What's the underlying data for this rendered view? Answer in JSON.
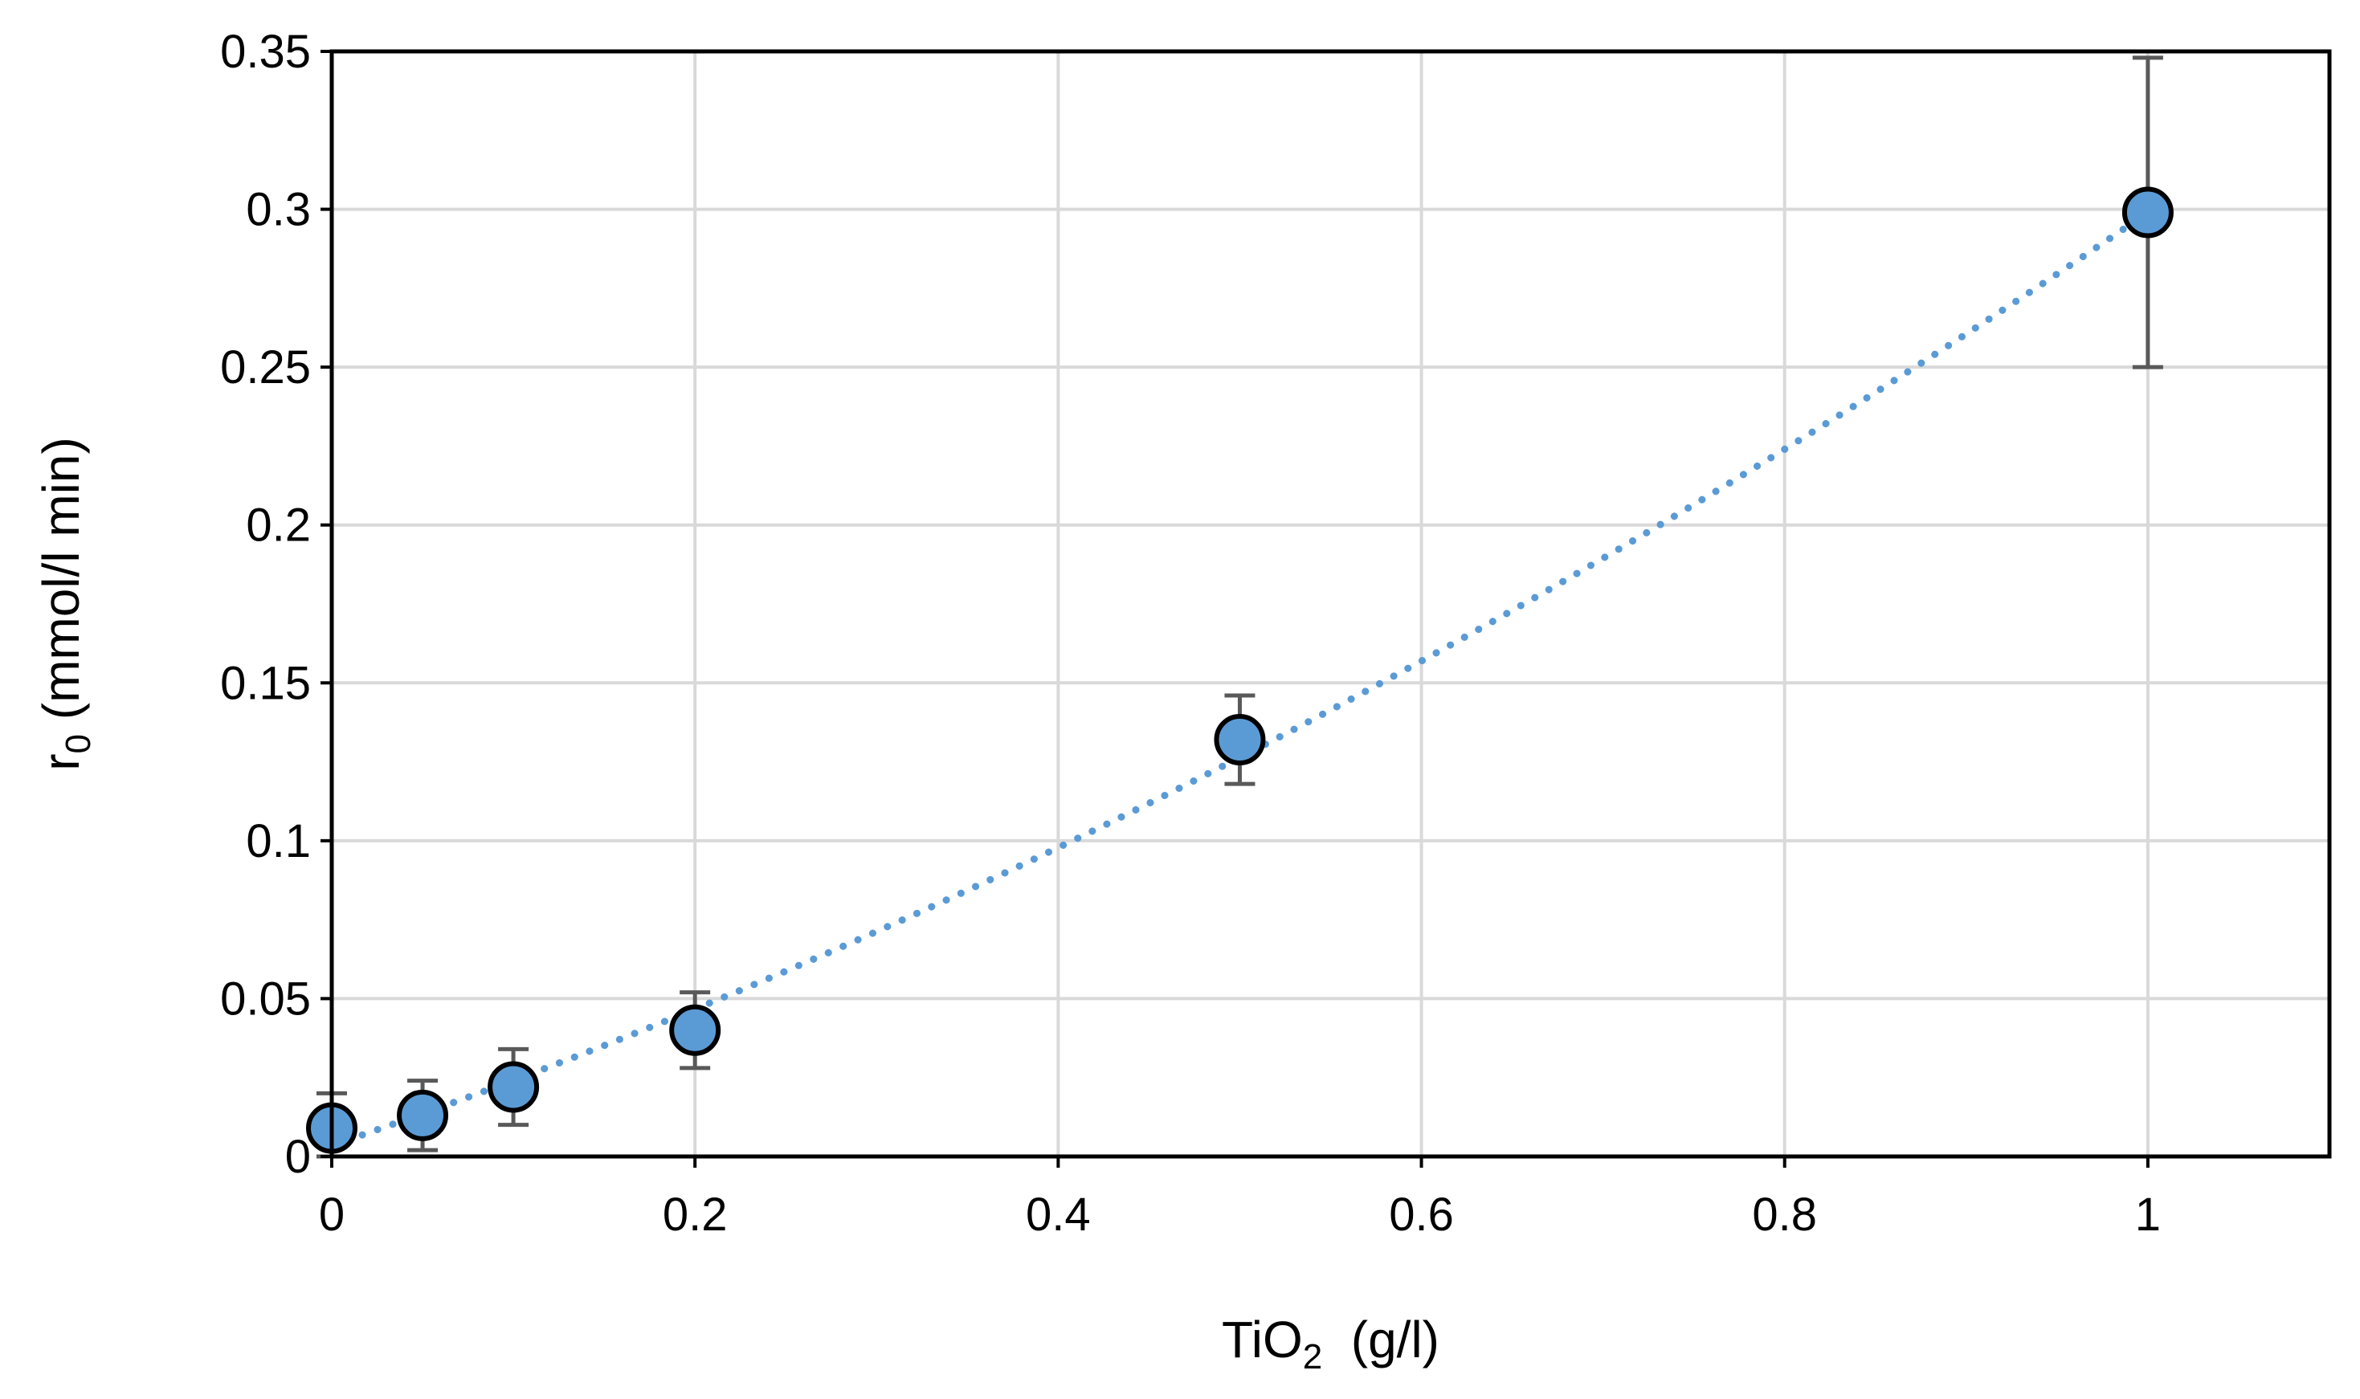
{
  "chart_data": {
    "type": "scatter",
    "xlabel": {
      "base": "TiO",
      "sub": "2",
      "rest": "  (g/l)"
    },
    "ylabel": {
      "base": "r",
      "sub": "0",
      "rest": " (mmol/l min)"
    },
    "xlim": [
      0,
      1.1
    ],
    "ylim": [
      0,
      0.35
    ],
    "x_ticks": [
      0,
      0.2,
      0.4,
      0.6,
      0.8,
      1
    ],
    "x_tick_labels": [
      "0",
      "0.2",
      "0.4",
      "0.6",
      "0.8",
      "1"
    ],
    "y_ticks": [
      0,
      0.05,
      0.1,
      0.15,
      0.2,
      0.25,
      0.3,
      0.35
    ],
    "y_tick_labels": [
      "0",
      "0.05",
      "0.1",
      "0.15",
      "0.2",
      "0.25",
      "0.3",
      "0.35"
    ],
    "grid": true,
    "legend": "none",
    "series": [
      {
        "x": [
          0,
          0.05,
          0.1,
          0.2,
          0.5,
          1
        ],
        "y": [
          0.009,
          0.013,
          0.022,
          0.04,
          0.132,
          0.299
        ],
        "err_low": [
          0.009,
          0.011,
          0.012,
          0.012,
          0.014,
          0.049
        ],
        "err_high": [
          0.011,
          0.011,
          0.012,
          0.012,
          0.014,
          0.049
        ],
        "marker_color": "#5b9bd5",
        "marker_edge": "#000000"
      }
    ],
    "trendline": {
      "type": "polynomial",
      "style": "dotted",
      "color": "#5b9bd5",
      "x_range": [
        0,
        1
      ],
      "coefficients": [
        0.0035,
        0.196,
        0.0995
      ]
    },
    "colors": {
      "grid": "#d9d9d9",
      "frame": "#000000",
      "errorbar": "#595959"
    }
  }
}
